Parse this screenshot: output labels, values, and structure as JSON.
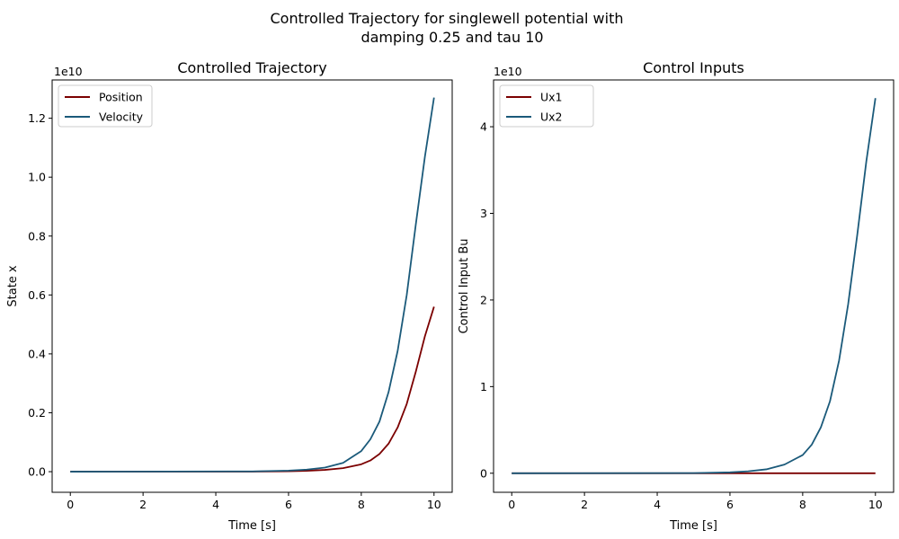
{
  "suptitle": {
    "line1": "Controlled Trajectory for singlewell potential with",
    "line2": "damping 0.25 and tau 10"
  },
  "colors": {
    "series1": "#7b0000",
    "series2": "#1b5a7a"
  },
  "chart_data": [
    {
      "type": "line",
      "title": "Controlled Trajectory",
      "xlabel": "Time [s]",
      "ylabel": "State x",
      "offset_text": "1e10",
      "xlim": [
        -0.5,
        10.5
      ],
      "ylim": [
        -0.07,
        1.33
      ],
      "xticks": [
        0,
        2,
        4,
        6,
        8,
        10
      ],
      "xtick_labels": [
        "0",
        "2",
        "4",
        "6",
        "8",
        "10"
      ],
      "yticks": [
        0.0,
        0.2,
        0.4,
        0.6,
        0.8,
        1.0,
        1.2
      ],
      "ytick_labels": [
        "0.0",
        "0.2",
        "0.4",
        "0.6",
        "0.8",
        "1.0",
        "1.2"
      ],
      "legend_position": "top-left",
      "series": [
        {
          "name": "Position",
          "color": "#7b0000",
          "x": [
            0,
            5,
            6,
            6.5,
            7,
            7.5,
            8,
            8.25,
            8.5,
            8.75,
            9,
            9.25,
            9.5,
            9.75,
            10
          ],
          "y": [
            0,
            0.0004,
            0.0015,
            0.003,
            0.006,
            0.012,
            0.025,
            0.038,
            0.06,
            0.095,
            0.15,
            0.23,
            0.34,
            0.46,
            0.56
          ]
        },
        {
          "name": "Velocity",
          "color": "#1b5a7a",
          "x": [
            0,
            5,
            6,
            6.5,
            7,
            7.5,
            8,
            8.25,
            8.5,
            8.75,
            9,
            9.25,
            9.5,
            9.75,
            10
          ],
          "y": [
            0,
            0.001,
            0.0035,
            0.007,
            0.014,
            0.03,
            0.07,
            0.11,
            0.17,
            0.27,
            0.41,
            0.6,
            0.84,
            1.07,
            1.27
          ]
        }
      ]
    },
    {
      "type": "line",
      "title": "Control Inputs",
      "xlabel": "Time [s]",
      "ylabel": "Control Input Bu",
      "offset_text": "1e10",
      "xlim": [
        -0.5,
        10.5
      ],
      "ylim": [
        -0.22,
        4.54
      ],
      "xticks": [
        0,
        2,
        4,
        6,
        8,
        10
      ],
      "xtick_labels": [
        "0",
        "2",
        "4",
        "6",
        "8",
        "10"
      ],
      "yticks": [
        0,
        1,
        2,
        3,
        4
      ],
      "ytick_labels": [
        "0",
        "1",
        "2",
        "3",
        "4"
      ],
      "legend_position": "top-left",
      "series": [
        {
          "name": "Ux1",
          "color": "#7b0000",
          "x": [
            0,
            10
          ],
          "y": [
            0,
            0
          ]
        },
        {
          "name": "Ux2",
          "color": "#1b5a7a",
          "x": [
            0,
            5,
            6,
            6.5,
            7,
            7.5,
            8,
            8.25,
            8.5,
            8.75,
            9,
            9.25,
            9.5,
            9.75,
            10
          ],
          "y": [
            0,
            0.002,
            0.01,
            0.022,
            0.045,
            0.1,
            0.21,
            0.33,
            0.53,
            0.83,
            1.3,
            1.95,
            2.75,
            3.6,
            4.33
          ]
        }
      ]
    }
  ]
}
